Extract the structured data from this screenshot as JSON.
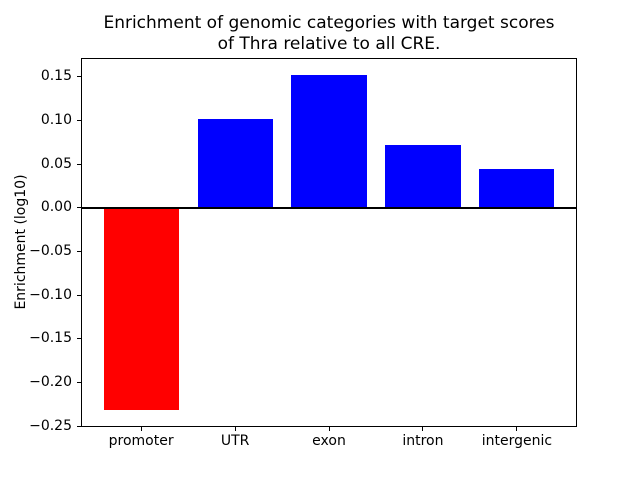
{
  "figure": {
    "background": "#ffffff"
  },
  "chart_data": {
    "type": "bar",
    "title": "Enrichment of genomic categories with target scores\nof Thra relative to all CRE.",
    "xlabel": "",
    "ylabel": "Enrichment (log10)",
    "categories": [
      "promoter",
      "UTR",
      "exon",
      "intron",
      "intergenic"
    ],
    "values": [
      -0.232,
      0.102,
      0.152,
      0.072,
      0.044
    ],
    "bar_colors": [
      "#ff0000",
      "#0000ff",
      "#0000ff",
      "#0000ff",
      "#0000ff"
    ],
    "positive_color": "#0000ff",
    "negative_color": "#ff0000",
    "bar_width": 0.8,
    "xlim": [
      -0.64,
      4.64
    ],
    "ylim": [
      -0.251,
      0.1715
    ],
    "yticks": [
      0.15,
      0.1,
      0.05,
      0.0,
      -0.05,
      -0.1,
      -0.15,
      -0.2,
      -0.25
    ],
    "ytick_labels": [
      "0.15",
      "0.10",
      "0.05",
      "0.00",
      "−0.05",
      "−0.10",
      "−0.15",
      "−0.20",
      "−0.25"
    ],
    "zero_line": true,
    "grid": false,
    "legend": "none"
  }
}
